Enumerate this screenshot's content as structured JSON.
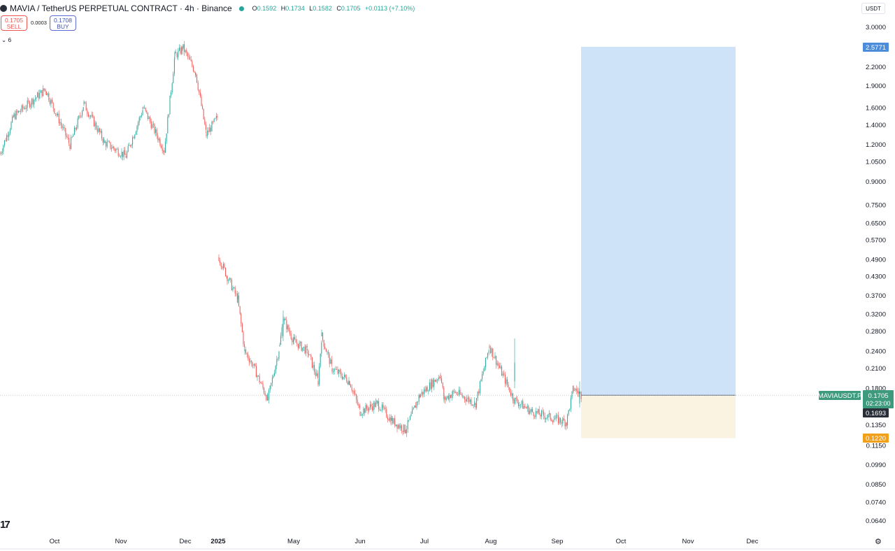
{
  "header": {
    "symbol": "MAVIA / TetherUS PERPETUAL CONTRACT · 4h · Binance",
    "open_label": "O",
    "open": "0.1592",
    "high_label": "H",
    "high": "0.1734",
    "low_label": "L",
    "low": "0.1582",
    "close_label": "C",
    "close": "0.1705",
    "change": "+0.0113 (+7.10%)"
  },
  "trade": {
    "sell_price": "0.1705",
    "sell_label": "SELL",
    "spread": "0.0003",
    "buy_price": "0.1708",
    "buy_label": "BUY"
  },
  "indicators": {
    "toggle_icon": "chevron-down-icon",
    "count": "6"
  },
  "currency_button": "USDT",
  "colors": {
    "up": "#26a69a",
    "down": "#ef5350",
    "profit_zone": "#cfe3f8",
    "loss_zone": "#fbf3e2",
    "target_badge": "#4c8ddb",
    "stop_badge": "#f2a01a",
    "last_price_badge": "#3d9a7d",
    "dark_badge": "#2a2e39"
  },
  "chart_data": {
    "type": "candlestick",
    "title": "MAVIA / TetherUS PERPETUAL CONTRACT · 4h · Binance",
    "y_scale": "log",
    "y_ticks": [
      "3.0000",
      "2.2000",
      "1.9000",
      "1.6000",
      "1.4000",
      "1.2000",
      "1.0500",
      "0.9000",
      "0.7500",
      "0.6500",
      "0.5700",
      "0.4900",
      "0.4300",
      "0.3700",
      "0.3200",
      "0.2800",
      "0.2400",
      "0.2100",
      "0.1800",
      "0.1350",
      "0.1150",
      "0.0990",
      "0.0850",
      "0.0740",
      "0.0640"
    ],
    "x_ticks": [
      "Oct",
      "Nov",
      "Dec",
      "2025",
      "May",
      "Jun",
      "Jul",
      "Aug",
      "Sep",
      "Oct",
      "Nov",
      "Dec"
    ],
    "price_path": [
      {
        "t": "start",
        "p": 1.12
      },
      {
        "t": "early Oct",
        "p": 1.5
      },
      {
        "t": "Oct",
        "p": 1.85
      },
      {
        "t": "late Oct",
        "p": 1.2
      },
      {
        "t": "early Nov",
        "p": 1.65
      },
      {
        "t": "Nov",
        "p": 1.22
      },
      {
        "t": "mid Nov",
        "p": 1.1
      },
      {
        "t": "late Nov",
        "p": 1.6
      },
      {
        "t": "Nov end",
        "p": 1.15
      },
      {
        "t": "early Dec",
        "p": 2.4
      },
      {
        "t": "Dec",
        "p": 2.55
      },
      {
        "t": "Dec",
        "p": 2.1
      },
      {
        "t": "mid Dec",
        "p": 1.3
      },
      {
        "t": "late Dec",
        "p": 1.5
      },
      {
        "t": "2025",
        "p": 0.5
      },
      {
        "t": "Jan",
        "p": 0.43
      },
      {
        "t": "Feb",
        "p": 0.36
      },
      {
        "t": "Feb",
        "p": 0.24
      },
      {
        "t": "Mar",
        "p": 0.22
      },
      {
        "t": "Mar",
        "p": 0.165
      },
      {
        "t": "Apr",
        "p": 0.25
      },
      {
        "t": "Apr",
        "p": 0.31
      },
      {
        "t": "Apr",
        "p": 0.26
      },
      {
        "t": "May",
        "p": 0.24
      },
      {
        "t": "May",
        "p": 0.19
      },
      {
        "t": "May",
        "p": 0.27
      },
      {
        "t": "May",
        "p": 0.21
      },
      {
        "t": "Jun",
        "p": 0.19
      },
      {
        "t": "Jun",
        "p": 0.15
      },
      {
        "t": "Jun",
        "p": 0.16
      },
      {
        "t": "Jun",
        "p": 0.14
      },
      {
        "t": "Jul",
        "p": 0.13
      },
      {
        "t": "Jul",
        "p": 0.17
      },
      {
        "t": "Jul",
        "p": 0.2
      },
      {
        "t": "Jul",
        "p": 0.165
      },
      {
        "t": "Aug",
        "p": 0.175
      },
      {
        "t": "Aug",
        "p": 0.16
      },
      {
        "t": "Aug",
        "p": 0.25
      },
      {
        "t": "Aug",
        "p": 0.165
      },
      {
        "t": "Sep",
        "p": 0.15
      },
      {
        "t": "Sep",
        "p": 0.138
      },
      {
        "t": "Sep",
        "p": 0.18
      },
      {
        "t": "now",
        "p": 0.1705
      }
    ],
    "position": {
      "type": "long",
      "entry": "0.1705",
      "target": "2.5771",
      "stop": "0.1220"
    },
    "labels": {
      "symbol_tag": "MAVIAUSDT.P",
      "last_price": "0.1705",
      "countdown": "02:23:00",
      "cross_price": "0.1693",
      "target_price": "2.5771",
      "stop_price": "0.1220"
    }
  }
}
